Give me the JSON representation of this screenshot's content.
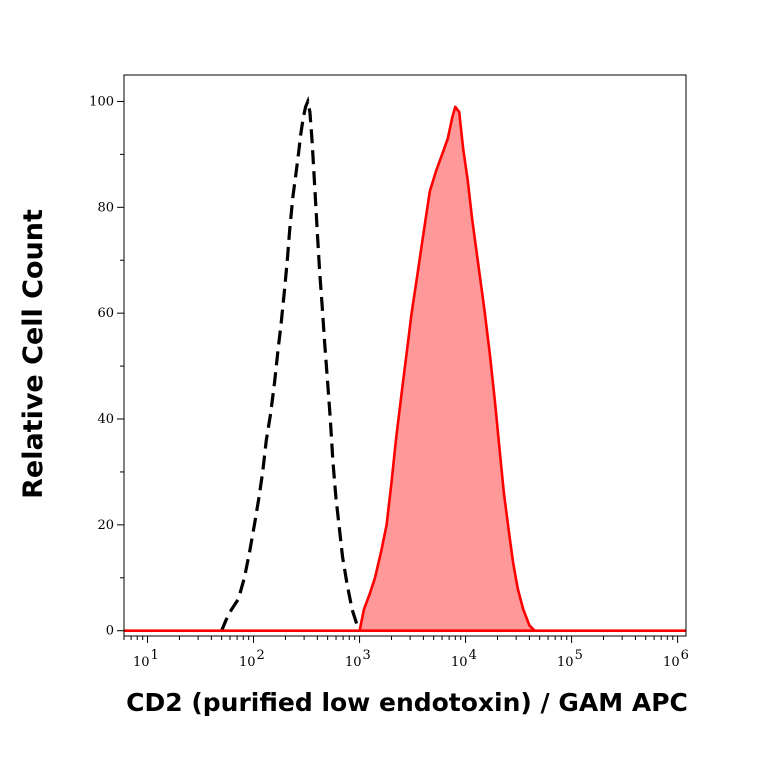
{
  "chart_data": {
    "type": "area",
    "xlabel": "CD2 (purified low endotoxin) / GAM APC",
    "ylabel": "Relative Cell Count",
    "x_scale": "log",
    "xlim": [
      6,
      1200000
    ],
    "ylim": [
      -1,
      105
    ],
    "y_ticks": [
      0,
      20,
      40,
      60,
      80,
      100
    ],
    "x_ticks": [
      {
        "value": 10,
        "base": "10",
        "exp": "1"
      },
      {
        "value": 100,
        "base": "10",
        "exp": "2"
      },
      {
        "value": 1000,
        "base": "10",
        "exp": "3"
      },
      {
        "value": 10000,
        "base": "10",
        "exp": "4"
      },
      {
        "value": 100000,
        "base": "10",
        "exp": "5"
      },
      {
        "value": 1000000,
        "base": "10",
        "exp": "6"
      }
    ],
    "grid": false,
    "legend": "none",
    "series": [
      {
        "style": "dashed-line",
        "color": "#000000",
        "points": [
          [
            50,
            0
          ],
          [
            55,
            2
          ],
          [
            62,
            4
          ],
          [
            72,
            6
          ],
          [
            82,
            10
          ],
          [
            92,
            15
          ],
          [
            102,
            20
          ],
          [
            112,
            25
          ],
          [
            122,
            30
          ],
          [
            132,
            36
          ],
          [
            145,
            41
          ],
          [
            158,
            47
          ],
          [
            170,
            53
          ],
          [
            182,
            58
          ],
          [
            195,
            64
          ],
          [
            208,
            70
          ],
          [
            220,
            76
          ],
          [
            235,
            82
          ],
          [
            250,
            86
          ],
          [
            265,
            90
          ],
          [
            280,
            94
          ],
          [
            295,
            97
          ],
          [
            310,
            99
          ],
          [
            325,
            100
          ],
          [
            340,
            98
          ],
          [
            355,
            93
          ],
          [
            370,
            87
          ],
          [
            385,
            81
          ],
          [
            400,
            75
          ],
          [
            420,
            68
          ],
          [
            445,
            61
          ],
          [
            470,
            54
          ],
          [
            500,
            47
          ],
          [
            530,
            40
          ],
          [
            560,
            32
          ],
          [
            600,
            25
          ],
          [
            640,
            20
          ],
          [
            690,
            14
          ],
          [
            760,
            9
          ],
          [
            850,
            4
          ],
          [
            950,
            1
          ],
          [
            1050,
            0
          ]
        ]
      },
      {
        "style": "filled",
        "color": "#ff0000",
        "fill": "#ff9999",
        "points": [
          [
            1000,
            0
          ],
          [
            1100,
            4
          ],
          [
            1250,
            7
          ],
          [
            1400,
            10
          ],
          [
            1600,
            15
          ],
          [
            1800,
            20
          ],
          [
            2000,
            28
          ],
          [
            2200,
            36
          ],
          [
            2500,
            45
          ],
          [
            2800,
            53
          ],
          [
            3100,
            60
          ],
          [
            3500,
            67
          ],
          [
            4000,
            75
          ],
          [
            4600,
            83
          ],
          [
            5300,
            87
          ],
          [
            6000,
            90
          ],
          [
            6800,
            93
          ],
          [
            7500,
            97
          ],
          [
            8000,
            99
          ],
          [
            8700,
            98
          ],
          [
            9500,
            91
          ],
          [
            10500,
            85
          ],
          [
            11500,
            78
          ],
          [
            13000,
            70
          ],
          [
            15000,
            61
          ],
          [
            17000,
            52
          ],
          [
            19000,
            43
          ],
          [
            21000,
            34
          ],
          [
            23000,
            26
          ],
          [
            25500,
            19
          ],
          [
            28000,
            13
          ],
          [
            31000,
            8
          ],
          [
            35000,
            4
          ],
          [
            40000,
            1
          ],
          [
            45000,
            0
          ]
        ]
      }
    ]
  }
}
